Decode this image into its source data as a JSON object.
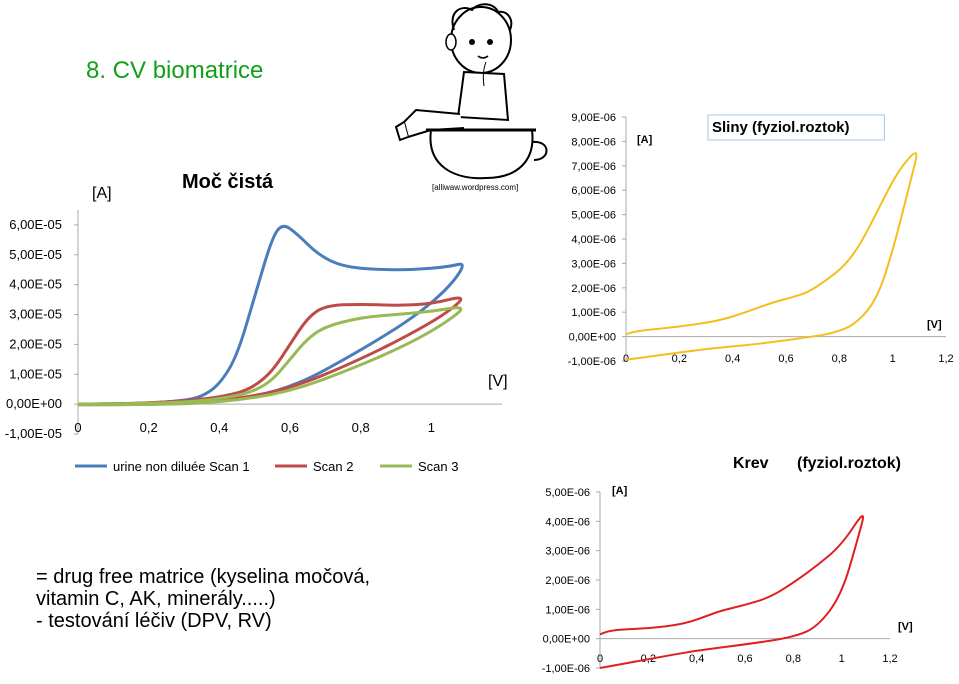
{
  "slide": {
    "title": "8. CV biomatrice",
    "credit": "[alliwaw.wordpress.com]",
    "description": [
      "= drug free matrice (kyselina močová,",
      "vitamin C, AK, minerály.....)",
      "- testování léčiv (DPV, RV)"
    ],
    "cartoon_icon": "child-on-potty-icon"
  },
  "chart_data": [
    {
      "type": "line",
      "title": "Moč čistá",
      "xlabel": "[V]",
      "ylabel": "[A]",
      "xlim": [
        0,
        1.2
      ],
      "ylim": [
        -1e-05,
        6.5e-05
      ],
      "xticks": [
        "0",
        "0,2",
        "0,4",
        "0,6",
        "0,8",
        "1"
      ],
      "yticks": [
        "-1,00E-05",
        "0,00E+00",
        "1,00E-05",
        "2,00E-05",
        "3,00E-05",
        "4,00E-05",
        "5,00E-05",
        "6,00E-05"
      ],
      "ytick_values": [
        -1e-05,
        0,
        1e-05,
        2e-05,
        3e-05,
        4e-05,
        5e-05,
        6e-05
      ],
      "xtick_values": [
        0,
        0.2,
        0.4,
        0.6,
        0.8,
        1.0
      ],
      "legend_position": "bottom",
      "grid": false,
      "series": [
        {
          "name": "urine non diluée Scan 1",
          "color": "#4a7ebb",
          "x": [
            0,
            0.1,
            0.2,
            0.3,
            0.35,
            0.4,
            0.45,
            0.5,
            0.55,
            0.58,
            0.62,
            0.68,
            0.75,
            0.85,
            0.95,
            1.05,
            1.1,
            1.05,
            0.95,
            0.8,
            0.6,
            0.4,
            0.2,
            0
          ],
          "y": [
            0,
            1e-07,
            3e-07,
            1.2e-06,
            2.5e-06,
            6.5e-06,
            1.6e-05,
            3.6e-05,
            5.6e-05,
            6.05e-05,
            5.7e-05,
            5e-05,
            4.6e-05,
            4.5e-05,
            4.5e-05,
            4.6e-05,
            4.75e-05,
            3.9e-05,
            2.9e-05,
            1.8e-05,
            5e-06,
            6e-07,
            -1e-07,
            -2e-07
          ]
        },
        {
          "name": "Scan 2",
          "color": "#be4b48",
          "x": [
            0,
            0.2,
            0.35,
            0.45,
            0.5,
            0.55,
            0.6,
            0.65,
            0.7,
            0.8,
            0.9,
            1.0,
            1.1,
            1.05,
            0.95,
            0.8,
            0.6,
            0.4,
            0.2,
            0
          ],
          "y": [
            0,
            3e-07,
            1.5e-06,
            3.5e-06,
            6e-06,
            1.1e-05,
            2e-05,
            2.9e-05,
            3.3e-05,
            3.35e-05,
            3.3e-05,
            3.35e-05,
            3.65e-05,
            3.1e-05,
            2.4e-05,
            1.5e-05,
            5e-06,
            8e-07,
            -1e-07,
            -1e-07
          ]
        },
        {
          "name": "Scan 3",
          "color": "#98b954",
          "x": [
            0,
            0.2,
            0.35,
            0.45,
            0.5,
            0.55,
            0.6,
            0.65,
            0.7,
            0.8,
            0.9,
            1.0,
            1.1,
            1.05,
            0.95,
            0.8,
            0.6,
            0.4,
            0.2,
            0
          ],
          "y": [
            0,
            2e-07,
            1e-06,
            2.8e-06,
            4.5e-06,
            8e-06,
            1.5e-05,
            2.2e-05,
            2.6e-05,
            2.9e-05,
            3e-05,
            3.1e-05,
            3.3e-05,
            2.8e-05,
            2.1e-05,
            1.3e-05,
            4e-06,
            5e-07,
            -2e-07,
            -2e-07
          ]
        }
      ]
    },
    {
      "type": "line",
      "title": "Sliny (fyziol.roztok)",
      "xlabel": "[V]",
      "ylabel": "[A]",
      "xlim": [
        0,
        1.2
      ],
      "ylim": [
        -1e-06,
        9e-06
      ],
      "xticks": [
        "0",
        "0,2",
        "0,4",
        "0,6",
        "0,8",
        "1",
        "1,2"
      ],
      "xtick_values": [
        0,
        0.2,
        0.4,
        0.6,
        0.8,
        1.0,
        1.2
      ],
      "yticks": [
        "-1,00E-06",
        "0,00E+00",
        "1,00E-06",
        "2,00E-06",
        "3,00E-06",
        "4,00E-06",
        "5,00E-06",
        "6,00E-06",
        "7,00E-06",
        "8,00E-06",
        "9,00E-06"
      ],
      "ytick_values": [
        -1e-06,
        0,
        1e-06,
        2e-06,
        3e-06,
        4e-06,
        5e-06,
        6e-06,
        7e-06,
        8e-06,
        9e-06
      ],
      "grid": false,
      "series": [
        {
          "color": "#f5be1e",
          "x": [
            0,
            0.05,
            0.2,
            0.35,
            0.45,
            0.55,
            0.62,
            0.68,
            0.75,
            0.82,
            0.88,
            0.95,
            1.02,
            1.1,
            1.07,
            1.0,
            0.94,
            0.86,
            0.78,
            0.7,
            0.5,
            0.3,
            0.1,
            0
          ],
          "y": [
            1e-07,
            2.5e-07,
            4e-07,
            6.5e-07,
            1e-06,
            1.4e-06,
            1.6e-06,
            1.8e-06,
            2.3e-06,
            2.9e-06,
            3.8e-06,
            5.3e-06,
            6.8e-06,
            7.8e-06,
            6.5e-06,
            3.5e-06,
            1.5e-06,
            5e-07,
            1.5e-07,
            0.0,
            -3e-07,
            -5e-07,
            -8e-07,
            -9.5e-07
          ]
        }
      ]
    },
    {
      "type": "line",
      "title": "Krev",
      "subtitle": "(fyziol.roztok)",
      "xlabel": "[V]",
      "ylabel": "[A]",
      "xlim": [
        0,
        1.2
      ],
      "ylim": [
        -1e-06,
        5e-06
      ],
      "xticks": [
        "0",
        "0,2",
        "0,4",
        "0,6",
        "0,8",
        "1",
        "1,2"
      ],
      "xtick_values": [
        0,
        0.2,
        0.4,
        0.6,
        0.8,
        1.0,
        1.2
      ],
      "yticks": [
        "-1,00E-06",
        "0,00E+00",
        "1,00E-06",
        "2,00E-06",
        "3,00E-06",
        "4,00E-06",
        "5,00E-06"
      ],
      "ytick_values": [
        -1e-06,
        0,
        1e-06,
        2e-06,
        3e-06,
        4e-06,
        5e-06
      ],
      "grid": false,
      "series": [
        {
          "color": "#e02020",
          "x": [
            0,
            0.05,
            0.2,
            0.35,
            0.45,
            0.5,
            0.6,
            0.7,
            0.8,
            0.9,
            1.0,
            1.1,
            1.07,
            1.0,
            0.9,
            0.8,
            0.6,
            0.4,
            0.2,
            0
          ],
          "y": [
            1.5e-07,
            3e-07,
            3.5e-07,
            5e-07,
            8e-07,
            9.5e-07,
            1.15e-06,
            1.4e-06,
            1.9e-06,
            2.5e-06,
            3.2e-06,
            4.45e-06,
            3.5e-06,
            1.5e-06,
            4e-07,
            5e-08,
            -2e-07,
            -4e-07,
            -7e-07,
            -1e-06
          ]
        }
      ]
    }
  ]
}
